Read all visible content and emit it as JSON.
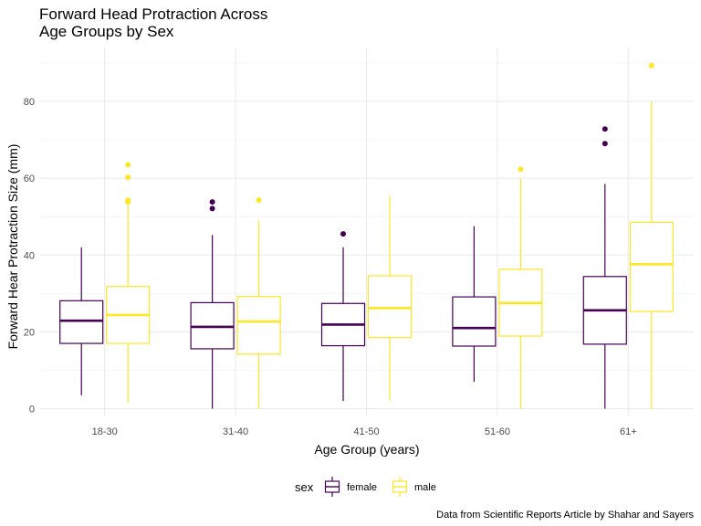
{
  "chart_data": {
    "type": "boxplot",
    "title_lines": [
      "Forward Head Protraction Across",
      "Age Groups by Sex"
    ],
    "xlabel": "Age Group (years)",
    "ylabel": "Forward Hear Protraction Size (mm)",
    "caption": "Data from Scientific Reports Article by Shahar and Sayers",
    "categories": [
      "18-30",
      "31-40",
      "41-50",
      "51-60",
      "61+"
    ],
    "ylim": [
      -2,
      94
    ],
    "yticks": [
      0,
      20,
      40,
      60,
      80
    ],
    "grid": true,
    "legend": {
      "title": "sex",
      "position": "bottom"
    },
    "series": [
      {
        "name": "female",
        "color": "#440154",
        "boxes": [
          {
            "whisker_low": 3.5,
            "q1": 17.0,
            "median": 22.9,
            "q3": 28.1,
            "whisker_high": 42.0,
            "outliers": []
          },
          {
            "whisker_low": 0.0,
            "q1": 15.6,
            "median": 21.3,
            "q3": 27.6,
            "whisker_high": 45.2,
            "outliers": [
              52.1,
              53.8
            ]
          },
          {
            "whisker_low": 2.0,
            "q1": 16.4,
            "median": 21.9,
            "q3": 27.4,
            "whisker_high": 42.0,
            "outliers": [
              45.5
            ]
          },
          {
            "whisker_low": 7.0,
            "q1": 16.3,
            "median": 21.0,
            "q3": 29.1,
            "whisker_high": 47.5,
            "outliers": []
          },
          {
            "whisker_low": 0.0,
            "q1": 16.8,
            "median": 25.6,
            "q3": 34.4,
            "whisker_high": 58.5,
            "outliers": [
              69.0,
              72.8
            ]
          }
        ]
      },
      {
        "name": "male",
        "color": "#FDE725",
        "boxes": [
          {
            "whisker_low": 1.5,
            "q1": 17.0,
            "median": 24.4,
            "q3": 31.8,
            "whisker_high": 53.0,
            "outliers": [
              53.8,
              54.3,
              60.2,
              63.5
            ]
          },
          {
            "whisker_low": 0.0,
            "q1": 14.2,
            "median": 22.7,
            "q3": 29.2,
            "whisker_high": 49.0,
            "outliers": [
              54.3
            ]
          },
          {
            "whisker_low": 2.0,
            "q1": 18.5,
            "median": 26.2,
            "q3": 34.6,
            "whisker_high": 55.5,
            "outliers": []
          },
          {
            "whisker_low": 0.0,
            "q1": 18.9,
            "median": 27.5,
            "q3": 36.3,
            "whisker_high": 60.0,
            "outliers": [
              62.3
            ]
          },
          {
            "whisker_low": 0.0,
            "q1": 25.3,
            "median": 37.6,
            "q3": 48.5,
            "whisker_high": 80.0,
            "outliers": [
              89.3
            ]
          }
        ]
      }
    ]
  }
}
